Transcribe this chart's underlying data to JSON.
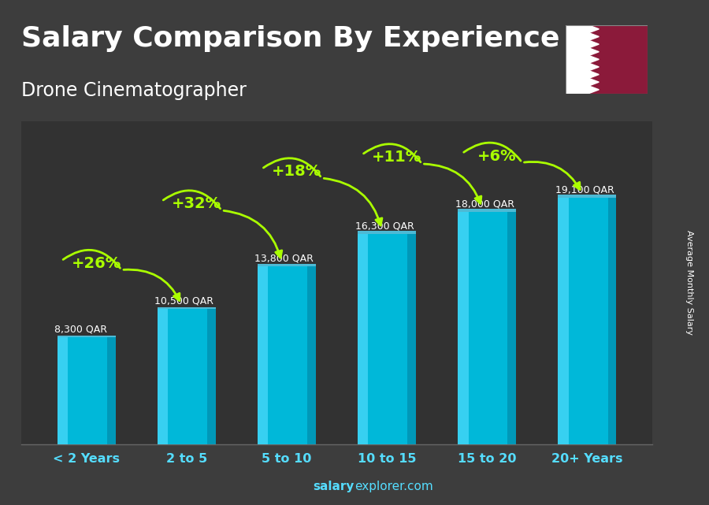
{
  "title": "Salary Comparison By Experience",
  "subtitle": "Drone Cinematographer",
  "ylabel": "Average Monthly Salary",
  "categories": [
    "< 2 Years",
    "2 to 5",
    "5 to 10",
    "10 to 15",
    "15 to 20",
    "20+ Years"
  ],
  "values": [
    8300,
    10500,
    13800,
    16300,
    18000,
    19100
  ],
  "bar_color_main": "#00b8d9",
  "bar_color_light": "#55ddff",
  "bar_color_dark": "#007a99",
  "pct_labels": [
    "+26%",
    "+32%",
    "+18%",
    "+11%",
    "+6%"
  ],
  "salary_labels": [
    "8,300 QAR",
    "10,500 QAR",
    "13,800 QAR",
    "16,300 QAR",
    "18,000 QAR",
    "19,100 QAR"
  ],
  "title_color": "#ffffff",
  "pct_color": "#aaff00",
  "salary_label_color": "#ffffff",
  "xtick_color": "#55ddff",
  "watermark_salary": "salary",
  "watermark_rest": "explorer.com",
  "background_color": "#3d3d3d",
  "ylim": [
    0,
    25000
  ],
  "title_fontsize": 26,
  "subtitle_fontsize": 17,
  "bar_width": 0.58,
  "flag_maroon": "#8b1a3a",
  "pct_offsets_y": [
    3500,
    4800,
    4800,
    4200,
    3200
  ],
  "pct_text_x_offset": [
    -0.1,
    -0.1,
    -0.1,
    -0.1,
    -0.1
  ]
}
